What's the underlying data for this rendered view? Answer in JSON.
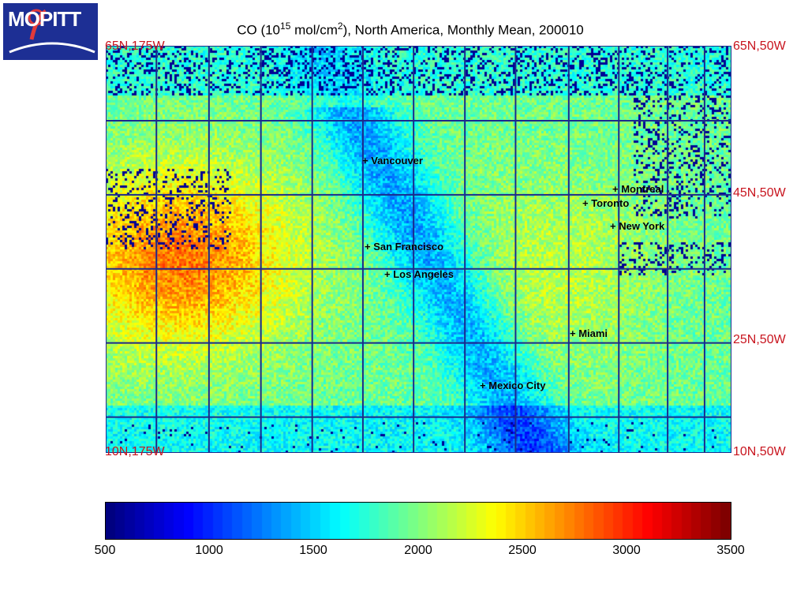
{
  "logo": {
    "text": "MOPITT"
  },
  "title": {
    "prefix": "CO (10",
    "exp1": "15",
    "mid": " mol/cm",
    "exp2": "2",
    "suffix": "), North America, Monthly Mean, 200010"
  },
  "corners": {
    "top_left": "65N,175W",
    "top_right": "65N,50W",
    "mid_right_1": "45N,50W",
    "mid_right_2": "25N,50W",
    "bottom_left": "10N,175W",
    "bottom_right": "10N,50W"
  },
  "cities": [
    {
      "name": "Vancouver",
      "label": "+ Vancouver"
    },
    {
      "name": "Montreal",
      "label": "+ Montreal"
    },
    {
      "name": "Toronto",
      "label": "+ Toronto"
    },
    {
      "name": "New York",
      "label": "+ New York"
    },
    {
      "name": "San Francisco",
      "label": "+ San Francisco"
    },
    {
      "name": "Los Angeles",
      "label": "+ Los Angeles"
    },
    {
      "name": "Miami",
      "label": "+ Miami"
    },
    {
      "name": "Mexico City",
      "label": "+ Mexico City"
    }
  ],
  "colorbar": {
    "min": 500,
    "max": 3500,
    "ticks": [
      "500",
      "1000",
      "1500",
      "2000",
      "2500",
      "3000",
      "3500"
    ],
    "colormap": "jet"
  },
  "colors": {
    "grid": "#1c2a8c",
    "corner_label": "#c8141e",
    "logo_bg": "#1d2f94"
  }
}
